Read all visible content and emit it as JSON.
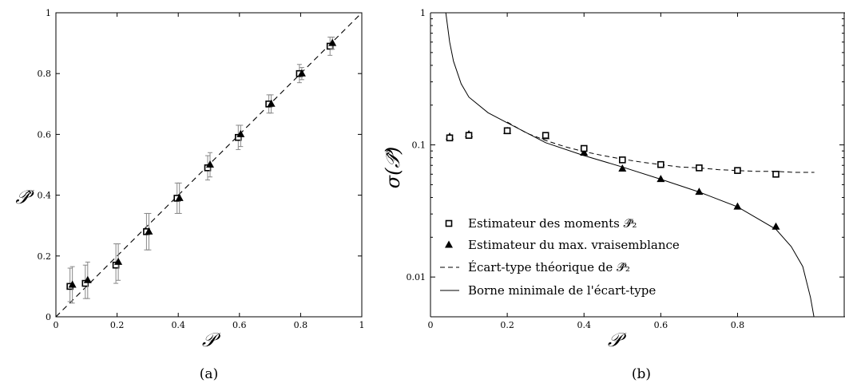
{
  "chart_data": [
    {
      "type": "scatter",
      "panel_label": "(a)",
      "xlabel": "𝒫",
      "ylabel": "𝒫̂",
      "xlim": [
        0,
        1
      ],
      "ylim": [
        0,
        1
      ],
      "xticks": [
        "0",
        "0.2",
        "0.4",
        "0.6",
        "0.8",
        "1"
      ],
      "yticks": [
        "0",
        "0.2",
        "0.4",
        "0.6",
        "0.8",
        "1"
      ],
      "grid": false,
      "reference_line": {
        "style": "dashed",
        "from": [
          0,
          0
        ],
        "to": [
          1,
          1
        ]
      },
      "series": [
        {
          "marker": "open-square",
          "x": [
            0.05,
            0.1,
            0.2,
            0.3,
            0.4,
            0.5,
            0.6,
            0.7,
            0.8,
            0.9
          ],
          "y": [
            0.1,
            0.11,
            0.17,
            0.28,
            0.39,
            0.49,
            0.59,
            0.7,
            0.8,
            0.89
          ],
          "err_low": [
            0.05,
            0.05,
            0.06,
            0.06,
            0.05,
            0.04,
            0.04,
            0.03,
            0.03,
            0.03
          ],
          "err_high": [
            0.06,
            0.06,
            0.07,
            0.06,
            0.05,
            0.04,
            0.04,
            0.03,
            0.03,
            0.03
          ]
        },
        {
          "marker": "filled-triangle",
          "x": [
            0.05,
            0.1,
            0.2,
            0.3,
            0.4,
            0.5,
            0.6,
            0.7,
            0.8,
            0.9
          ],
          "y": [
            0.105,
            0.12,
            0.18,
            0.28,
            0.39,
            0.5,
            0.6,
            0.7,
            0.8,
            0.9
          ],
          "err_low": [
            0.06,
            0.06,
            0.06,
            0.06,
            0.05,
            0.04,
            0.04,
            0.03,
            0.02,
            0.02
          ],
          "err_high": [
            0.06,
            0.06,
            0.06,
            0.06,
            0.05,
            0.04,
            0.03,
            0.03,
            0.02,
            0.02
          ]
        }
      ]
    },
    {
      "type": "scatter",
      "panel_label": "(b)",
      "xlabel": "𝒫",
      "ylabel": "σ(𝒫̂)",
      "xlim": [
        0,
        1
      ],
      "ylim": [
        0.005,
        1
      ],
      "yscale": "log",
      "xticks": [
        "0",
        "0.2",
        "0.4",
        "0.6",
        "0.8"
      ],
      "yticks": [
        "0.01",
        "0.1",
        "1"
      ],
      "grid": false,
      "legend_position": "lower-left",
      "series": [
        {
          "name": "Estimateur des moments 𝒫̂₂",
          "marker": "open-square",
          "x": [
            0.05,
            0.1,
            0.2,
            0.3,
            0.4,
            0.5,
            0.6,
            0.7,
            0.8,
            0.9
          ],
          "y": [
            0.113,
            0.118,
            0.128,
            0.118,
            0.094,
            0.077,
            0.071,
            0.067,
            0.064,
            0.06
          ]
        },
        {
          "name": "Estimateur du max. vraisemblance",
          "marker": "filled-triangle",
          "x": [
            0.05,
            0.1,
            0.2,
            0.3,
            0.4,
            0.5,
            0.6,
            0.7,
            0.8,
            0.9
          ],
          "y": [
            0.115,
            0.12,
            0.127,
            0.116,
            0.087,
            0.066,
            0.055,
            0.044,
            0.034,
            0.024
          ]
        },
        {
          "name": "Écart-type théorique de 𝒫̂₂",
          "line": "dashed",
          "x": [
            0.2,
            0.25,
            0.3,
            0.35,
            0.4,
            0.45,
            0.5,
            0.55,
            0.6,
            0.65,
            0.7,
            0.75,
            0.8,
            0.85,
            0.9,
            0.95,
            1.0
          ],
          "y": [
            0.149,
            0.123,
            0.108,
            0.097,
            0.089,
            0.083,
            0.078,
            0.074,
            0.071,
            0.068,
            0.067,
            0.065,
            0.064,
            0.063,
            0.063,
            0.062,
            0.062
          ]
        },
        {
          "name": "Borne minimale de l'écart-type",
          "line": "solid",
          "x": [
            0.04,
            0.05,
            0.06,
            0.08,
            0.1,
            0.15,
            0.2,
            0.3,
            0.4,
            0.5,
            0.6,
            0.7,
            0.8,
            0.9,
            0.94,
            0.97,
            0.99,
            0.999
          ],
          "y": [
            1.0,
            0.6,
            0.43,
            0.29,
            0.23,
            0.175,
            0.147,
            0.104,
            0.083,
            0.068,
            0.055,
            0.044,
            0.034,
            0.023,
            0.017,
            0.012,
            0.007,
            0.005
          ]
        }
      ]
    }
  ]
}
